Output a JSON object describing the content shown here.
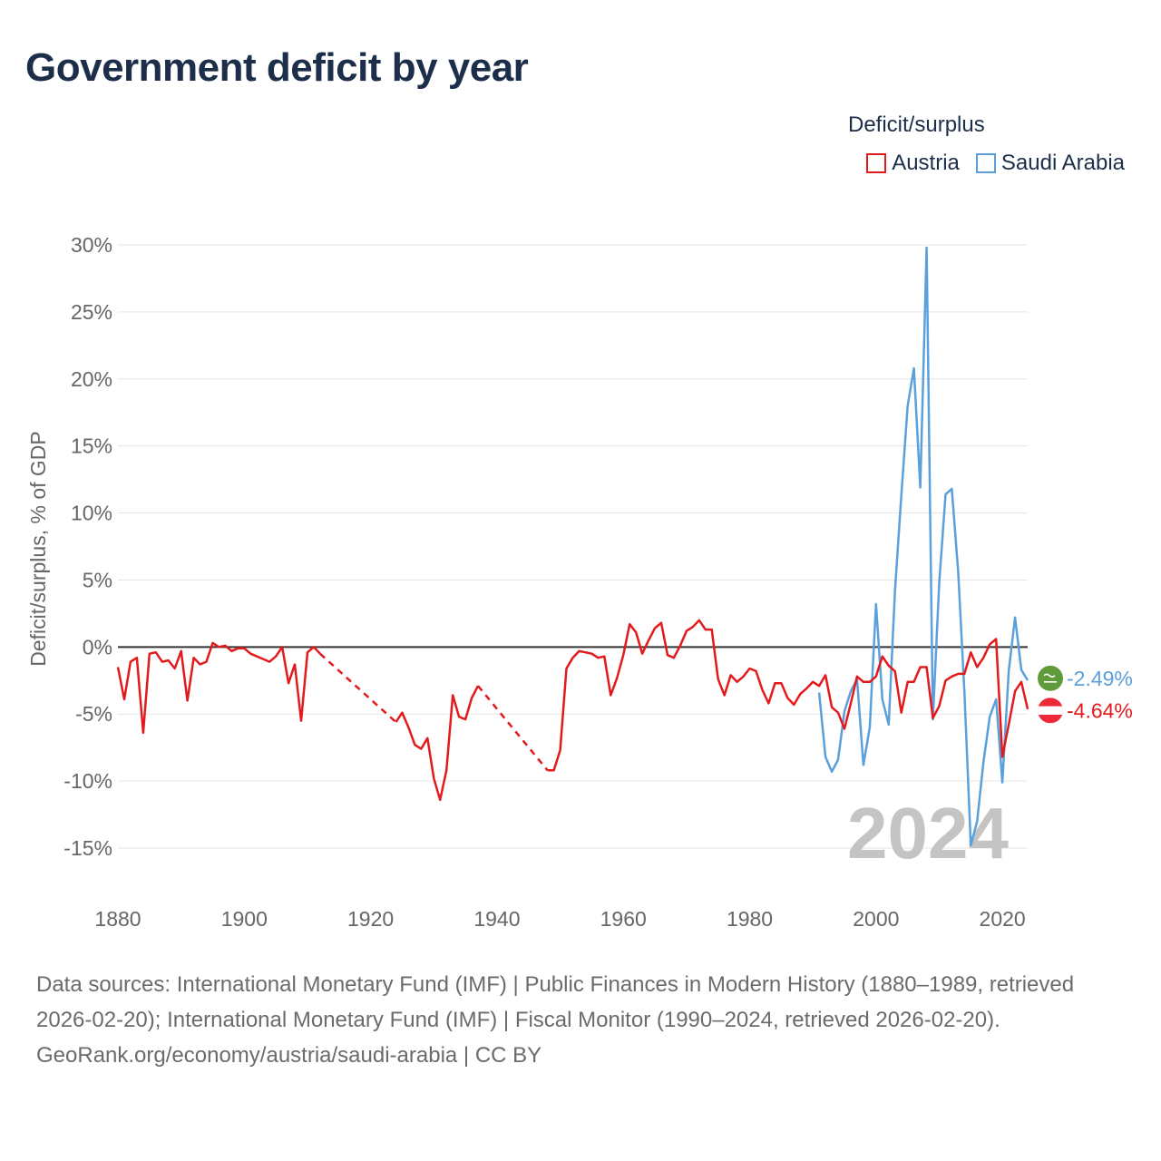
{
  "chart_data": {
    "type": "line",
    "title": "Government deficit by year",
    "xlabel": "",
    "ylabel": "Deficit/surplus, % of GDP",
    "xlim": [
      1880,
      2024
    ],
    "ylim": [
      -18,
      32
    ],
    "x_ticks": [
      1880,
      1900,
      1920,
      1940,
      1960,
      1980,
      2000,
      2020
    ],
    "y_ticks": [
      30,
      25,
      20,
      15,
      10,
      5,
      0,
      -5,
      -10,
      -15
    ],
    "y_tick_suffix": "%",
    "legend_title": "Deficit/surplus",
    "legend_position": "top-right",
    "year_watermark": "2024",
    "series": [
      {
        "name": "Austria",
        "color": "#e31a1c",
        "end_label": "-4.64%",
        "flag": "austria-flag",
        "gaps_dashed": true,
        "x": [
          1880,
          1881,
          1882,
          1883,
          1884,
          1885,
          1886,
          1887,
          1888,
          1889,
          1890,
          1891,
          1892,
          1893,
          1894,
          1895,
          1896,
          1897,
          1898,
          1899,
          1900,
          1901,
          1902,
          1903,
          1904,
          1905,
          1906,
          1907,
          1908,
          1909,
          1910,
          1911,
          1912,
          1924,
          1925,
          1926,
          1927,
          1928,
          1929,
          1930,
          1931,
          1932,
          1933,
          1934,
          1935,
          1936,
          1937,
          1948,
          1949,
          1950,
          1951,
          1952,
          1953,
          1954,
          1955,
          1956,
          1957,
          1958,
          1959,
          1960,
          1961,
          1962,
          1963,
          1964,
          1965,
          1966,
          1967,
          1968,
          1969,
          1970,
          1971,
          1972,
          1973,
          1974,
          1975,
          1976,
          1977,
          1978,
          1979,
          1980,
          1981,
          1982,
          1983,
          1984,
          1985,
          1986,
          1987,
          1988,
          1989,
          1990,
          1991,
          1992,
          1993,
          1994,
          1995,
          1996,
          1997,
          1998,
          1999,
          2000,
          2001,
          2002,
          2003,
          2004,
          2005,
          2006,
          2007,
          2008,
          2009,
          2010,
          2011,
          2012,
          2013,
          2014,
          2015,
          2016,
          2017,
          2018,
          2019,
          2020,
          2021,
          2022,
          2023,
          2024
        ],
        "values": [
          -1.5,
          -3.9,
          -1.1,
          -0.8,
          -6.4,
          -0.5,
          -0.4,
          -1.1,
          -1.0,
          -1.6,
          -0.3,
          -4.0,
          -0.8,
          -1.3,
          -1.1,
          0.3,
          0.0,
          0.1,
          -0.3,
          -0.1,
          -0.1,
          -0.5,
          -0.7,
          -0.9,
          -1.1,
          -0.7,
          0.0,
          -2.7,
          -1.3,
          -5.5,
          -0.4,
          0.0,
          -0.5,
          -5.6,
          -4.9,
          -6.0,
          -7.3,
          -7.6,
          -6.8,
          -9.8,
          -11.4,
          -9.2,
          -3.6,
          -5.2,
          -5.4,
          -3.8,
          -2.9,
          -9.2,
          -9.2,
          -7.7,
          -1.6,
          -0.8,
          -0.3,
          -0.4,
          -0.5,
          -0.8,
          -0.7,
          -3.6,
          -2.3,
          -0.6,
          1.7,
          1.1,
          -0.5,
          0.5,
          1.4,
          1.8,
          -0.6,
          -0.8,
          0.1,
          1.2,
          1.5,
          2.0,
          1.3,
          1.3,
          -2.4,
          -3.6,
          -2.1,
          -2.6,
          -2.2,
          -1.6,
          -1.8,
          -3.2,
          -4.2,
          -2.7,
          -2.7,
          -3.8,
          -4.3,
          -3.5,
          -3.1,
          -2.6,
          -2.9,
          -2.1,
          -4.5,
          -4.9,
          -6.1,
          -4.2,
          -2.2,
          -2.6,
          -2.6,
          -2.2,
          -0.7,
          -1.4,
          -1.8,
          -4.9,
          -2.6,
          -2.6,
          -1.5,
          -1.5,
          -5.3,
          -4.4,
          -2.5,
          -2.2,
          -2.0,
          -2.0,
          -0.4,
          -1.5,
          -0.8,
          0.2,
          0.6,
          -8.2,
          -5.8,
          -3.3,
          -2.6,
          -4.64
        ]
      },
      {
        "name": "Saudi Arabia",
        "color": "#5aa0dc",
        "end_label": "-2.49%",
        "flag": "saudi-arabia-flag",
        "gaps_dashed": false,
        "x": [
          1991,
          1992,
          1993,
          1994,
          1995,
          1996,
          1997,
          1998,
          1999,
          2000,
          2001,
          2002,
          2003,
          2004,
          2005,
          2006,
          2007,
          2008,
          2009,
          2010,
          2011,
          2012,
          2013,
          2014,
          2015,
          2016,
          2017,
          2018,
          2019,
          2020,
          2021,
          2022,
          2023,
          2024
        ],
        "values": [
          -3.4,
          -8.2,
          -9.3,
          -8.4,
          -4.8,
          -3.3,
          -2.4,
          -8.8,
          -6.0,
          3.2,
          -3.9,
          -5.8,
          4.2,
          11.3,
          18.0,
          20.8,
          11.9,
          29.8,
          -5.4,
          4.8,
          11.4,
          11.8,
          5.6,
          -3.4,
          -14.8,
          -13.0,
          -8.6,
          -5.2,
          -3.9,
          -10.1,
          -1.8,
          2.2,
          -1.7,
          -2.49
        ]
      }
    ]
  },
  "footer": {
    "sources": "Data sources: International Monetary Fund (IMF) | Public Finances in Modern History (1880–1989, retrieved 2026-02-20); International Monetary Fund (IMF) | Fiscal Monitor (1990–2024, retrieved 2026-02-20).",
    "credit": "GeoRank.org/economy/austria/saudi-arabia | CC BY"
  }
}
